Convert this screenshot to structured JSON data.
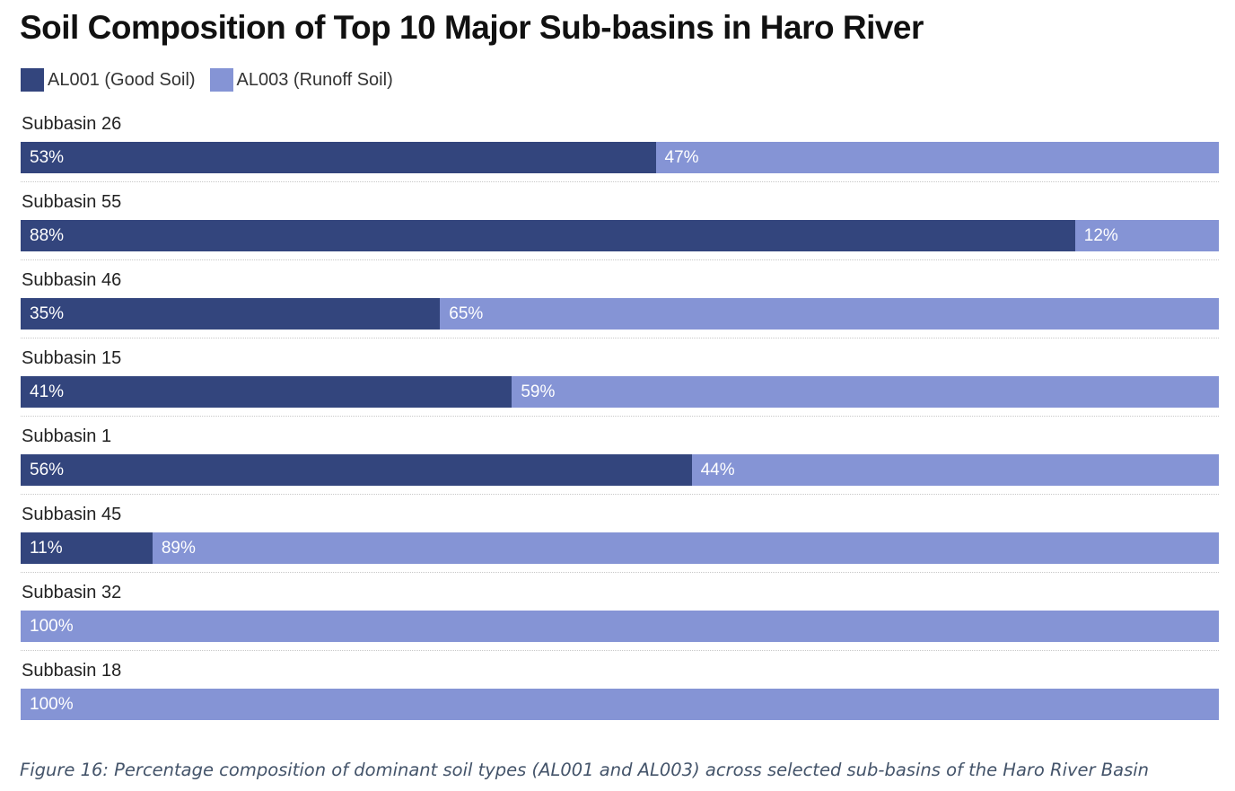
{
  "chart_data": {
    "type": "bar",
    "orientation": "horizontal",
    "stacked": true,
    "normalized": true,
    "title": "Soil Composition of Top 10 Major Sub-basins in Haro River",
    "categories": [
      "Subbasin 26",
      "Subbasin 55",
      "Subbasin 46",
      "Subbasin 15",
      "Subbasin 1",
      "Subbasin 45",
      "Subbasin 32",
      "Subbasin 18"
    ],
    "series": [
      {
        "name": "AL001 (Good Soil)",
        "color": "#33457d",
        "values": [
          53,
          88,
          35,
          41,
          56,
          11,
          0,
          0
        ]
      },
      {
        "name": "AL003 (Runoff Soil)",
        "color": "#8594d5",
        "values": [
          47,
          12,
          65,
          59,
          44,
          89,
          100,
          100
        ]
      }
    ],
    "value_suffix": "%",
    "legend": "top-left",
    "grid": false
  },
  "caption": "Figure 16: Percentage composition of dominant soil types (AL001 and AL003) across selected sub-basins of the Haro River Basin"
}
